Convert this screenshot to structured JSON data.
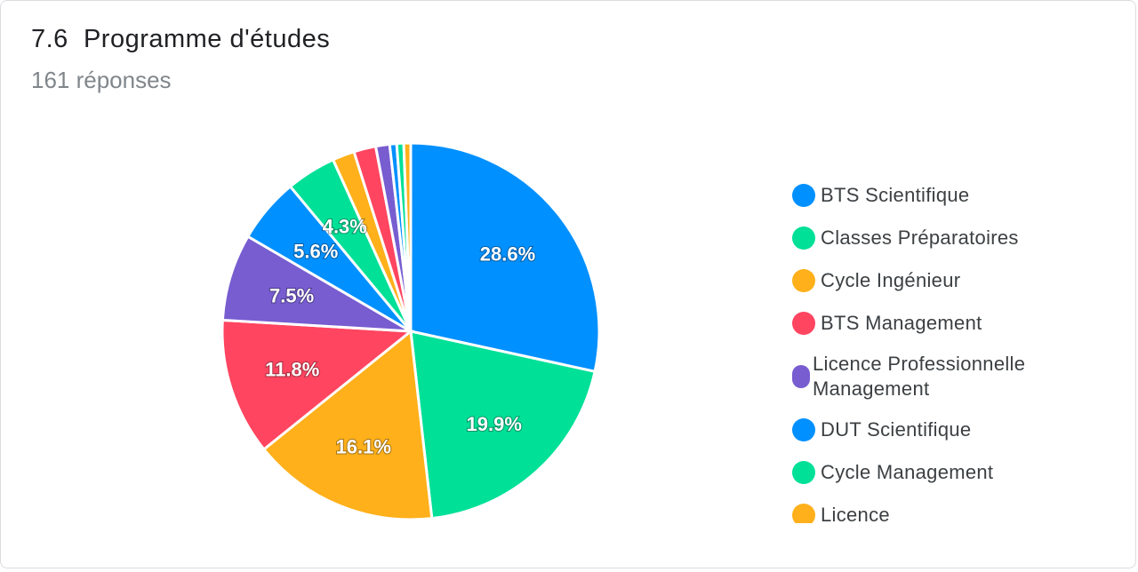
{
  "question": {
    "number": "7.6",
    "title": "Programme d'études",
    "responses": "161 réponses"
  },
  "chart_data": {
    "type": "pie",
    "categories": [
      "BTS Scientifique",
      "Classes Préparatoires",
      "Cycle Ingénieur",
      "BTS Management",
      "Licence Professionnelle Management",
      "DUT Scientifique",
      "Cycle Management",
      "Licence",
      "",
      "",
      "",
      "",
      ""
    ],
    "values": [
      28.6,
      19.9,
      16.1,
      11.8,
      7.5,
      5.6,
      4.3,
      1.9,
      1.9,
      1.2,
      0.6,
      0.6,
      0.6
    ],
    "data_labels": [
      "28.6%",
      "19.9%",
      "16.1%",
      "11.8%",
      "7.5%",
      "5.6%",
      "4.3%",
      "",
      "",
      "",
      "",
      "",
      ""
    ],
    "colors": [
      "#0090ff",
      "#00e097",
      "#ffb01a",
      "#ff4560",
      "#775dd0",
      "#0090ff",
      "#00e097",
      "#ffb01a",
      "#ff4560",
      "#775dd0",
      "#0090ff",
      "#00e097",
      "#ffb01a"
    ],
    "legend_visible": [
      "BTS Scientifique",
      "Classes Préparatoires",
      "Cycle Ingénieur",
      "BTS Management",
      "Licence Professionnelle Management",
      "DUT Scientifique",
      "Cycle Management",
      "Licence"
    ],
    "legend_position": "right"
  }
}
